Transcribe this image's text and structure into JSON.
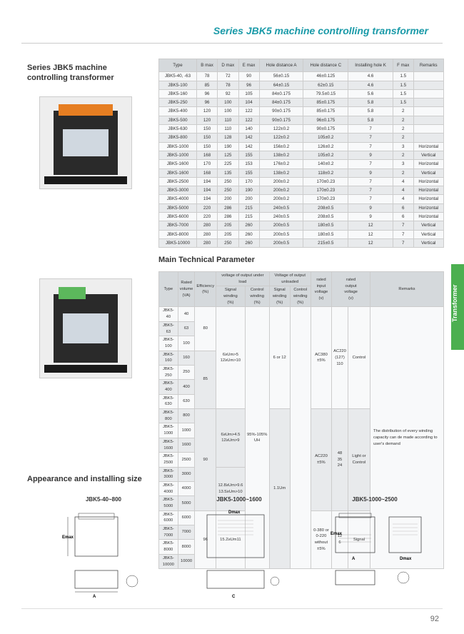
{
  "header": {
    "title": "Series JBK5 machine controlling transformer"
  },
  "sideTitle": "Series JBK5 machine controlling transformer",
  "sideTab": "Transformer",
  "table1": {
    "headers": [
      "Type",
      "B max",
      "D max",
      "E max",
      "Hole distance A",
      "Hole distance C",
      "Installing hole K",
      "F max",
      "Remarks"
    ],
    "rows": [
      [
        "JBK5-40, -63",
        "78",
        "72",
        "90",
        "56±0.15",
        "46±0.125",
        "4.6",
        "1.5",
        ""
      ],
      [
        "JBK5-100",
        "85",
        "78",
        "96",
        "64±0.15",
        "62±0.15",
        "4.6",
        "1.5",
        ""
      ],
      [
        "JBK5-160",
        "96",
        "92",
        "105",
        "84±0.175",
        "79.5±0.15",
        "5.6",
        "1.5",
        ""
      ],
      [
        "JBK5-250",
        "96",
        "100",
        "104",
        "84±0.175",
        "85±0.175",
        "5.8",
        "1.5",
        ""
      ],
      [
        "JBK5-400",
        "120",
        "100",
        "122",
        "90±0.175",
        "85±0.175",
        "5.8",
        "2",
        ""
      ],
      [
        "JBK5-500",
        "120",
        "110",
        "122",
        "90±0.175",
        "96±0.175",
        "5.8",
        "2",
        ""
      ],
      [
        "JBK5-630",
        "150",
        "110",
        "140",
        "122±0.2",
        "90±0.175",
        "7",
        "2",
        ""
      ],
      [
        "JBK5-800",
        "150",
        "128",
        "142",
        "122±0.2",
        "105±0.2",
        "7",
        "2",
        ""
      ],
      [
        "JBK5-1000",
        "150",
        "190",
        "142",
        "156±0.2",
        "126±0.2",
        "7",
        "3",
        "Horizontal"
      ],
      [
        "JBK5-1000",
        "168",
        "125",
        "155",
        "138±0.2",
        "105±0.2",
        "9",
        "2",
        "Vertical"
      ],
      [
        "JBK5-1600",
        "170",
        "225",
        "153",
        "176±0.2",
        "140±0.2",
        "7",
        "3",
        "Horizontal"
      ],
      [
        "JBK5-1600",
        "168",
        "135",
        "155",
        "138±0.2",
        "118±0.2",
        "9",
        "2",
        "Vertical"
      ],
      [
        "JBK5-2500",
        "194",
        "250",
        "170",
        "200±0.2",
        "170±0.23",
        "7",
        "4",
        "Horizontal"
      ],
      [
        "JBK5-3000",
        "194",
        "250",
        "190",
        "200±0.2",
        "170±0.23",
        "7",
        "4",
        "Horizontal"
      ],
      [
        "JBK5-4000",
        "194",
        "200",
        "200",
        "200±0.2",
        "170±0.23",
        "7",
        "4",
        "Horizontal"
      ],
      [
        "JBK5-5000",
        "220",
        "286",
        "215",
        "240±0.5",
        "208±0.5",
        "9",
        "6",
        "Horizontal"
      ],
      [
        "JBK5-6000",
        "220",
        "286",
        "215",
        "240±0.5",
        "208±0.5",
        "9",
        "6",
        "Horizontal"
      ],
      [
        "JBK5-7000",
        "280",
        "205",
        "260",
        "200±0.5",
        "180±0.5",
        "12",
        "7",
        "Vertical"
      ],
      [
        "JBK5-8000",
        "280",
        "205",
        "260",
        "200±0.5",
        "180±0.5",
        "12",
        "7",
        "Vertical"
      ],
      [
        "JBK5-10000",
        "280",
        "250",
        "260",
        "200±0.5",
        "215±0.5",
        "12",
        "7",
        "Vertical"
      ]
    ]
  },
  "table2": {
    "title": "Main Technical Parameter",
    "rows": [
      {
        "type": "JBK5-40",
        "vol": "40"
      },
      {
        "type": "JBK5-63",
        "vol": "63"
      },
      {
        "type": "JBK5-100",
        "vol": "100"
      },
      {
        "type": "JBK5-160",
        "vol": "160"
      },
      {
        "type": "JBK5-250",
        "vol": "250"
      },
      {
        "type": "JBK5-400",
        "vol": "400"
      },
      {
        "type": "JBK5-630",
        "vol": "630"
      },
      {
        "type": "JBK5-800",
        "vol": "800"
      },
      {
        "type": "JBK5-1000",
        "vol": "1000"
      },
      {
        "type": "JBK5-1600",
        "vol": "1600"
      },
      {
        "type": "JBK5-2500",
        "vol": "2500"
      },
      {
        "type": "JBK5-3000",
        "vol": "3000"
      },
      {
        "type": "JBK5-4000",
        "vol": "4000"
      },
      {
        "type": "JBK5-5000",
        "vol": "5000"
      },
      {
        "type": "JBK5-6000",
        "vol": "6000"
      },
      {
        "type": "JBK5-7000",
        "vol": "7000"
      },
      {
        "type": "JBK5-8000",
        "vol": "8000"
      },
      {
        "type": "JBK5-10000",
        "vol": "10000"
      }
    ],
    "eff": [
      "80",
      "85",
      "90",
      "96"
    ],
    "sig": [
      "6≥Um>5\n12≥Um>10",
      "6≥Um>4.5\n12≥Um>9",
      "12.8≥Um>9.6\n13.5≥Um>10",
      "15.2≥Um11"
    ],
    "ctrl": "95%-105%\nUH",
    "sigU": [
      "6 or 12",
      "1.1Um"
    ],
    "input": [
      "AC380\n±5%",
      "AC220\n±5%",
      "0-380 or\n0-220 without\n±5%"
    ],
    "output": "AC220\n(127)\n110",
    "outputNote": "Control",
    "outCol": [
      "48",
      "35",
      "24",
      "12",
      "6"
    ],
    "outLbl": [
      "Light or Control",
      "Signal"
    ],
    "remarks": "The distribution of every winding capacity can de made according to user's demand"
  },
  "appearTitle": "Appearance and installing size",
  "diag": [
    "JBK5-40~800",
    "JBK5-1000~1600",
    "JBK5-1000~2500"
  ],
  "pageNum": "92"
}
